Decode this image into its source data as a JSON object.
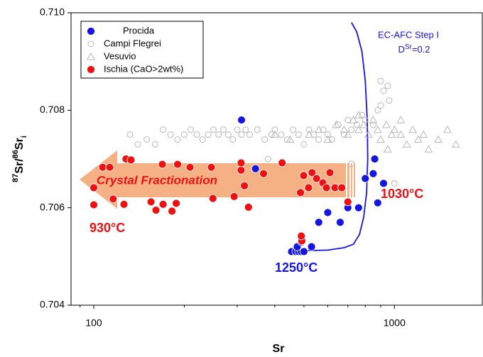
{
  "chart_data": {
    "type": "scatter",
    "xlabel": "Sr",
    "ylabel": [
      {
        "text": "87",
        "shift": "super"
      },
      {
        "text": "Sr/",
        "shift": "none"
      },
      {
        "text": "86",
        "shift": "super"
      },
      {
        "text": "Sr",
        "shift": "none"
      },
      {
        "text": "i",
        "shift": "sub"
      }
    ],
    "xlim": [
      84,
      1960
    ],
    "ylim": [
      0.704,
      0.71
    ],
    "xscale": "log",
    "xticks": [
      100,
      1000
    ],
    "yticks": [
      0.704,
      0.706,
      0.708,
      {
        "value": 0.71,
        "label": "0.710"
      }
    ],
    "annotations": {
      "model": "EC-AFC Step I",
      "d_base": "D",
      "d_sup": "Sr",
      "d_rest": "=0.2",
      "arrow": "Crystal Fractionation",
      "t1": "930°C",
      "t2": "1030°C",
      "t3": "1250°C"
    },
    "series": [
      {
        "name": "Procida",
        "color": "#1515e0",
        "marker": "circle",
        "x": [
          310,
          345,
          455,
          470,
          480,
          490,
          475,
          500,
          530,
          560,
          600,
          660,
          700,
          760,
          800,
          850,
          860,
          880,
          920,
          490
        ],
        "values": [
          0.7078,
          0.7068,
          0.7051,
          0.7051,
          0.7051,
          0.7051,
          0.7052,
          0.7051,
          0.7052,
          0.7057,
          0.7059,
          0.7057,
          0.706,
          0.706,
          0.7066,
          0.7067,
          0.707,
          0.7061,
          0.7065,
          0.7053
        ]
      },
      {
        "name": "Campi Flegrei",
        "color": "#b8b8b8",
        "marker": "open-circle",
        "x": [
          132,
          140,
          150,
          160,
          170,
          180,
          190,
          200,
          210,
          220,
          230,
          240,
          250,
          260,
          270,
          280,
          290,
          300,
          310,
          320,
          330,
          350,
          370,
          390,
          400,
          420,
          440,
          460,
          480,
          500,
          520,
          540,
          560,
          580,
          600,
          620,
          650,
          680,
          700,
          720,
          750,
          780,
          800,
          850,
          880,
          900,
          920,
          950,
          960,
          1000,
          900,
          380,
          720
        ],
        "values": [
          0.7075,
          0.7073,
          0.7074,
          0.7073,
          0.7076,
          0.7075,
          0.7074,
          0.7075,
          0.7076,
          0.7075,
          0.7074,
          0.7075,
          0.7076,
          0.7075,
          0.7076,
          0.7075,
          0.7074,
          0.7076,
          0.7075,
          0.7076,
          0.7075,
          0.7076,
          0.7074,
          0.7075,
          0.7076,
          0.7075,
          0.7074,
          0.7076,
          0.7075,
          0.7073,
          0.7076,
          0.7075,
          0.7074,
          0.7076,
          0.7075,
          0.7074,
          0.7077,
          0.7075,
          0.7078,
          0.7076,
          0.7077,
          0.7079,
          0.7078,
          0.7077,
          0.708,
          0.7086,
          0.7084,
          0.7085,
          0.7082,
          0.7065,
          0.7081,
          0.707,
          0.7069
        ]
      },
      {
        "name": "Vesuvio",
        "color": "#b8b8b8",
        "marker": "triangle",
        "x": [
          400,
          450,
          520,
          560,
          600,
          640,
          680,
          700,
          730,
          760,
          790,
          820,
          850,
          880,
          900,
          940,
          980,
          1000,
          1050,
          1100,
          1150,
          1200,
          1250,
          1300,
          1400,
          1500,
          1600,
          760,
          950,
          1050
        ],
        "values": [
          0.7075,
          0.7074,
          0.7075,
          0.7076,
          0.7074,
          0.7077,
          0.7076,
          0.7075,
          0.7078,
          0.7076,
          0.7077,
          0.7075,
          0.7078,
          0.7076,
          0.7074,
          0.7077,
          0.7075,
          0.7076,
          0.7075,
          0.7073,
          0.7076,
          0.7074,
          0.7075,
          0.7072,
          0.7074,
          0.7076,
          0.7073,
          0.7079,
          0.7072,
          0.7078
        ]
      },
      {
        "name": "Ischia (CaO>2wt%)",
        "color": "#ee1111",
        "marker": "circle",
        "x": [
          100,
          100,
          107,
          113,
          116,
          128,
          133,
          126,
          155,
          161,
          170,
          182,
          188,
          169,
          190,
          209,
          249,
          246,
          293,
          309,
          317,
          309,
          327,
          367,
          423,
          499,
          487,
          518,
          532,
          551,
          578,
          594,
          610,
          634,
          668,
          700,
          492,
          490
        ],
        "values": [
          0.70641,
          0.70606,
          0.70683,
          0.70683,
          0.70618,
          0.707,
          0.70698,
          0.70607,
          0.70612,
          0.70595,
          0.70607,
          0.70593,
          0.70609,
          0.70689,
          0.70689,
          0.70683,
          0.70619,
          0.70683,
          0.70623,
          0.70677,
          0.70645,
          0.70692,
          0.70601,
          0.7067,
          0.70692,
          0.70666,
          0.70631,
          0.70641,
          0.70672,
          0.7066,
          0.70651,
          0.70641,
          0.70672,
          0.70641,
          0.70641,
          0.70612,
          0.70532,
          0.70542
        ]
      }
    ],
    "model_curve": {
      "color": "#1515e0",
      "x": [
        505,
        600,
        680,
        730,
        765,
        790,
        808,
        815,
        812,
        800,
        780,
        750,
        720
      ],
      "values": [
        0.70512,
        0.70513,
        0.70518,
        0.70525,
        0.70545,
        0.7058,
        0.7063,
        0.707,
        0.7078,
        0.7086,
        0.7092,
        0.7096,
        0.7098
      ]
    }
  }
}
